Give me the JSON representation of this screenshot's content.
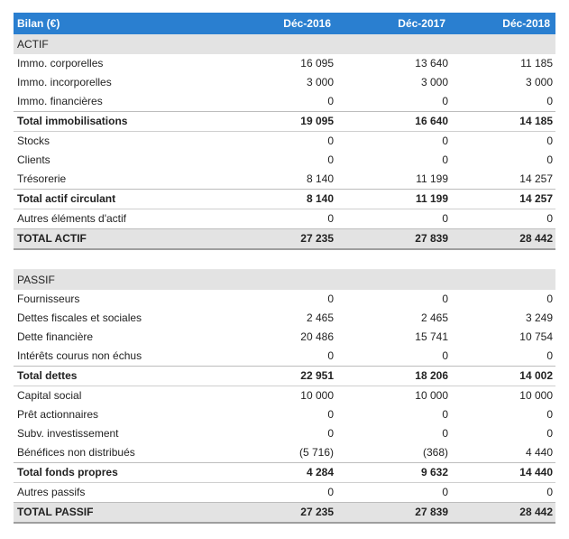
{
  "header": {
    "title": "Bilan (€)",
    "col1": "Déc-2016",
    "col2": "Déc-2017",
    "col3": "Déc-2018"
  },
  "rows": [
    {
      "type": "sec",
      "label": "ACTIF",
      "v": [
        "",
        "",
        ""
      ]
    },
    {
      "type": "row",
      "label": "Immo. corporelles",
      "v": [
        "16 095",
        "13 640",
        "11 185"
      ]
    },
    {
      "type": "row",
      "label": "Immo. incorporelles",
      "v": [
        "3 000",
        "3 000",
        "3 000"
      ]
    },
    {
      "type": "row",
      "label": "Immo. financières",
      "v": [
        "0",
        "0",
        "0"
      ]
    },
    {
      "type": "tot",
      "label": "Total immobilisations",
      "v": [
        "19 095",
        "16 640",
        "14 185"
      ]
    },
    {
      "type": "row",
      "label": "Stocks",
      "v": [
        "0",
        "0",
        "0"
      ]
    },
    {
      "type": "row",
      "label": "Clients",
      "v": [
        "0",
        "0",
        "0"
      ]
    },
    {
      "type": "row",
      "label": "Trésorerie",
      "v": [
        "8 140",
        "11 199",
        "14 257"
      ]
    },
    {
      "type": "tot",
      "label": "Total actif circulant",
      "v": [
        "8 140",
        "11 199",
        "14 257"
      ]
    },
    {
      "type": "row",
      "label": "Autres éléments d'actif",
      "v": [
        "0",
        "0",
        "0"
      ]
    },
    {
      "type": "gt",
      "label": "TOTAL ACTIF",
      "v": [
        "27 235",
        "27 839",
        "28 442"
      ]
    },
    {
      "type": "blank",
      "label": "",
      "v": [
        "",
        "",
        ""
      ]
    },
    {
      "type": "sec",
      "label": "PASSIF",
      "v": [
        "",
        "",
        ""
      ]
    },
    {
      "type": "row",
      "label": "Fournisseurs",
      "v": [
        "0",
        "0",
        "0"
      ]
    },
    {
      "type": "row",
      "label": "Dettes fiscales et sociales",
      "v": [
        "2 465",
        "2 465",
        "3 249"
      ]
    },
    {
      "type": "row",
      "label": "Dette financière",
      "v": [
        "20 486",
        "15 741",
        "10 754"
      ]
    },
    {
      "type": "row",
      "label": "Intérêts courus non échus",
      "v": [
        "0",
        "0",
        "0"
      ]
    },
    {
      "type": "tot",
      "label": "Total dettes",
      "v": [
        "22 951",
        "18 206",
        "14 002"
      ]
    },
    {
      "type": "row",
      "label": "Capital social",
      "v": [
        "10 000",
        "10 000",
        "10 000"
      ]
    },
    {
      "type": "row",
      "label": "Prêt actionnaires",
      "v": [
        "0",
        "0",
        "0"
      ]
    },
    {
      "type": "row",
      "label": "Subv. investissement",
      "v": [
        "0",
        "0",
        "0"
      ]
    },
    {
      "type": "row",
      "label": "Bénéfices non distribués",
      "v": [
        "(5 716)",
        "(368)",
        "4 440"
      ]
    },
    {
      "type": "tot",
      "label": "Total fonds propres",
      "v": [
        "4 284",
        "9 632",
        "14 440"
      ]
    },
    {
      "type": "row",
      "label": "Autres passifs",
      "v": [
        "0",
        "0",
        "0"
      ]
    },
    {
      "type": "gt",
      "label": "TOTAL PASSIF",
      "v": [
        "27 235",
        "27 839",
        "28 442"
      ]
    }
  ]
}
